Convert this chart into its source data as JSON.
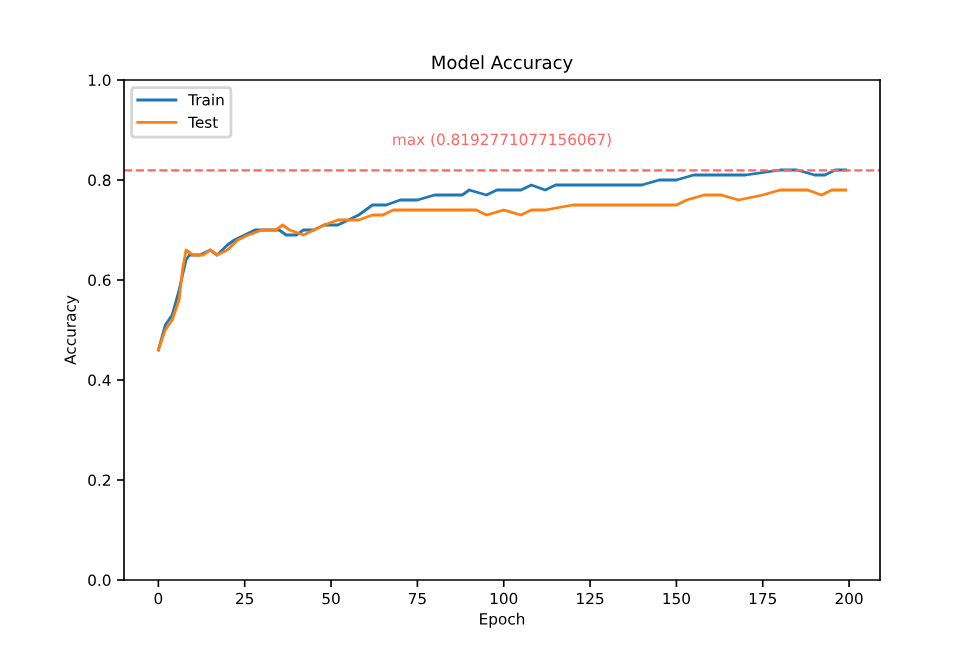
{
  "chart_data": {
    "type": "line",
    "title": "Model Accuracy",
    "xlabel": "Epoch",
    "ylabel": "Accuracy",
    "xlim": [
      -9.95,
      208.95
    ],
    "xticks": [
      0,
      25,
      50,
      75,
      100,
      125,
      150,
      175,
      200
    ],
    "ylim": [
      0,
      1
    ],
    "yticks": [
      {
        "value": 0,
        "label": "0.0"
      },
      0.2,
      0.4,
      0.6,
      0.8,
      {
        "value": 1,
        "label": "1.0"
      }
    ],
    "legend": "top left",
    "grid": false,
    "marker": "none",
    "line_style": "solid",
    "series": [
      {
        "name": "Train",
        "color": "#1f77b4",
        "x": [
          0,
          2,
          4,
          6,
          8,
          9,
          12,
          15,
          17,
          20,
          22,
          25,
          28,
          32,
          35,
          37,
          40,
          42,
          45,
          48,
          52,
          55,
          58,
          62,
          66,
          70,
          75,
          80,
          88,
          90,
          95,
          98,
          100,
          105,
          108,
          112,
          115,
          120,
          130,
          140,
          145,
          150,
          155,
          160,
          165,
          170,
          180,
          185,
          190,
          193,
          196,
          199
        ],
        "values": [
          0.46,
          0.51,
          0.53,
          0.58,
          0.64,
          0.65,
          0.65,
          0.66,
          0.65,
          0.67,
          0.68,
          0.69,
          0.7,
          0.7,
          0.7,
          0.69,
          0.69,
          0.7,
          0.7,
          0.71,
          0.71,
          0.72,
          0.73,
          0.75,
          0.75,
          0.76,
          0.76,
          0.77,
          0.77,
          0.78,
          0.77,
          0.78,
          0.78,
          0.78,
          0.79,
          0.78,
          0.79,
          0.79,
          0.79,
          0.79,
          0.8,
          0.8,
          0.81,
          0.81,
          0.81,
          0.81,
          0.82,
          0.82,
          0.81,
          0.81,
          0.82,
          0.82
        ]
      },
      {
        "name": "Test",
        "color": "#ff7f0e",
        "x": [
          0,
          2,
          4,
          6,
          7,
          8,
          10,
          13,
          15,
          17,
          20,
          23,
          26,
          30,
          34,
          36,
          38,
          42,
          45,
          48,
          52,
          56,
          58,
          62,
          65,
          68,
          75,
          85,
          92,
          95,
          100,
          105,
          108,
          112,
          120,
          140,
          150,
          153,
          158,
          163,
          168,
          175,
          180,
          188,
          192,
          195,
          199
        ],
        "values": [
          0.46,
          0.5,
          0.52,
          0.56,
          0.62,
          0.66,
          0.65,
          0.65,
          0.66,
          0.65,
          0.66,
          0.68,
          0.69,
          0.7,
          0.7,
          0.71,
          0.7,
          0.69,
          0.7,
          0.71,
          0.72,
          0.72,
          0.72,
          0.73,
          0.73,
          0.74,
          0.74,
          0.74,
          0.74,
          0.73,
          0.74,
          0.73,
          0.74,
          0.74,
          0.75,
          0.75,
          0.75,
          0.76,
          0.77,
          0.77,
          0.76,
          0.77,
          0.78,
          0.78,
          0.77,
          0.78,
          0.78
        ]
      }
    ],
    "ref_lines": [
      {
        "axis": "y",
        "value": 0.8192771077156067,
        "color": "#ff6666",
        "line_style": "dashed",
        "label": "max (0.8192771077156067)"
      }
    ]
  }
}
